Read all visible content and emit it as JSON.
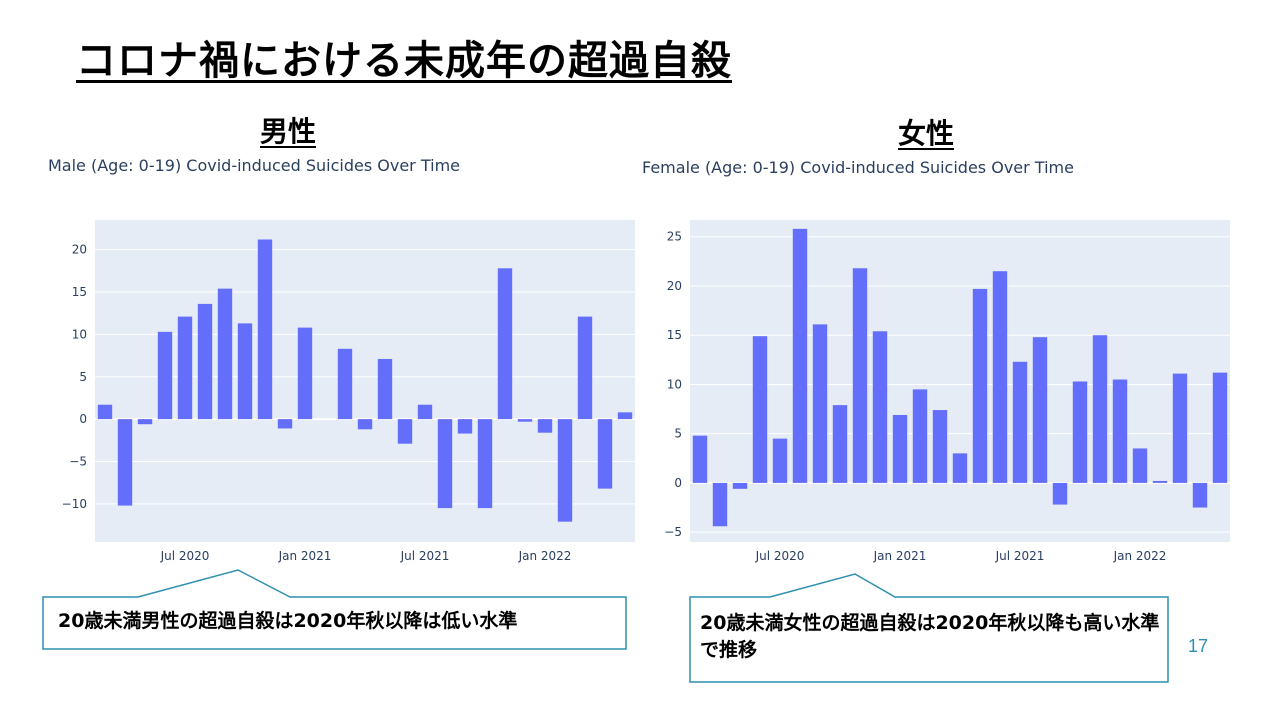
{
  "slide": {
    "title": "コロナ禍における未成年の超過自殺",
    "page_number": "17"
  },
  "male": {
    "heading": "男性",
    "callout": "20歳未満男性の超過自殺は2020年秋以降は低い水準"
  },
  "female": {
    "heading": "女性",
    "callout": "20歳未満女性の超過自殺は2020年秋以降も高い水準で推移"
  },
  "colors": {
    "bar": "#636efa",
    "plot_bg": "#e5ecf6",
    "grid": "#ffffff",
    "tick_text": "#2a3f5f",
    "callout_border": "#2e8fb0"
  },
  "chart_data": [
    {
      "type": "bar",
      "title": "Male (Age: 0-19) Covid-induced Suicides Over Time",
      "xlabel": "",
      "ylabel": "",
      "categories": [
        "2020-03",
        "2020-04",
        "2020-05",
        "2020-06",
        "2020-07",
        "2020-08",
        "2020-09",
        "2020-10",
        "2020-11",
        "2020-12",
        "2021-01",
        "2021-02",
        "2021-03",
        "2021-04",
        "2021-05",
        "2021-06",
        "2021-07",
        "2021-08",
        "2021-09",
        "2021-10",
        "2021-11",
        "2021-12",
        "2022-01",
        "2022-02",
        "2022-03",
        "2022-04",
        "2022-05"
      ],
      "values": [
        1.7,
        -10.2,
        -0.6,
        10.3,
        12.1,
        13.6,
        15.4,
        11.3,
        21.2,
        -1.1,
        10.8,
        0,
        8.3,
        -1.2,
        7.1,
        -2.9,
        1.7,
        -10.5,
        -1.7,
        -10.5,
        17.8,
        -0.3,
        -1.6,
        -12.1,
        12.1,
        -8.2,
        0.8
      ],
      "ylim": [
        -14.5,
        23.5
      ],
      "yticks": [
        20,
        15,
        10,
        5,
        0,
        -5,
        -10
      ],
      "ytick_labels": [
        "20",
        "15",
        "10",
        "5",
        "0",
        "−5",
        "−10"
      ],
      "xticks": [
        {
          "index": 4,
          "label": "Jul 2020"
        },
        {
          "index": 10,
          "label": "Jan 2021"
        },
        {
          "index": 16,
          "label": "Jul 2021"
        },
        {
          "index": 22,
          "label": "Jan 2022"
        }
      ],
      "grid": true
    },
    {
      "type": "bar",
      "title": "Female (Age: 0-19) Covid-induced Suicides Over Time",
      "xlabel": "",
      "ylabel": "",
      "categories": [
        "2020-03",
        "2020-04",
        "2020-05",
        "2020-06",
        "2020-07",
        "2020-08",
        "2020-09",
        "2020-10",
        "2020-11",
        "2020-12",
        "2021-01",
        "2021-02",
        "2021-03",
        "2021-04",
        "2021-05",
        "2021-06",
        "2021-07",
        "2021-08",
        "2021-09",
        "2021-10",
        "2021-11",
        "2021-12",
        "2022-01",
        "2022-02",
        "2022-03",
        "2022-04",
        "2022-05"
      ],
      "values": [
        4.8,
        -4.4,
        -0.6,
        14.9,
        4.5,
        25.8,
        16.1,
        7.9,
        21.8,
        15.4,
        6.9,
        9.5,
        7.4,
        3.0,
        19.7,
        21.5,
        12.3,
        14.8,
        -2.2,
        10.3,
        15.0,
        10.5,
        3.5,
        0.2,
        11.1,
        -2.5,
        11.2
      ],
      "ylim": [
        -6,
        26.7
      ],
      "yticks": [
        25,
        20,
        15,
        10,
        5,
        0,
        -5
      ],
      "ytick_labels": [
        "25",
        "20",
        "15",
        "10",
        "5",
        "0",
        "−5"
      ],
      "xticks": [
        {
          "index": 4,
          "label": "Jul 2020"
        },
        {
          "index": 10,
          "label": "Jan 2021"
        },
        {
          "index": 16,
          "label": "Jul 2021"
        },
        {
          "index": 22,
          "label": "Jan 2022"
        }
      ],
      "grid": true
    }
  ]
}
